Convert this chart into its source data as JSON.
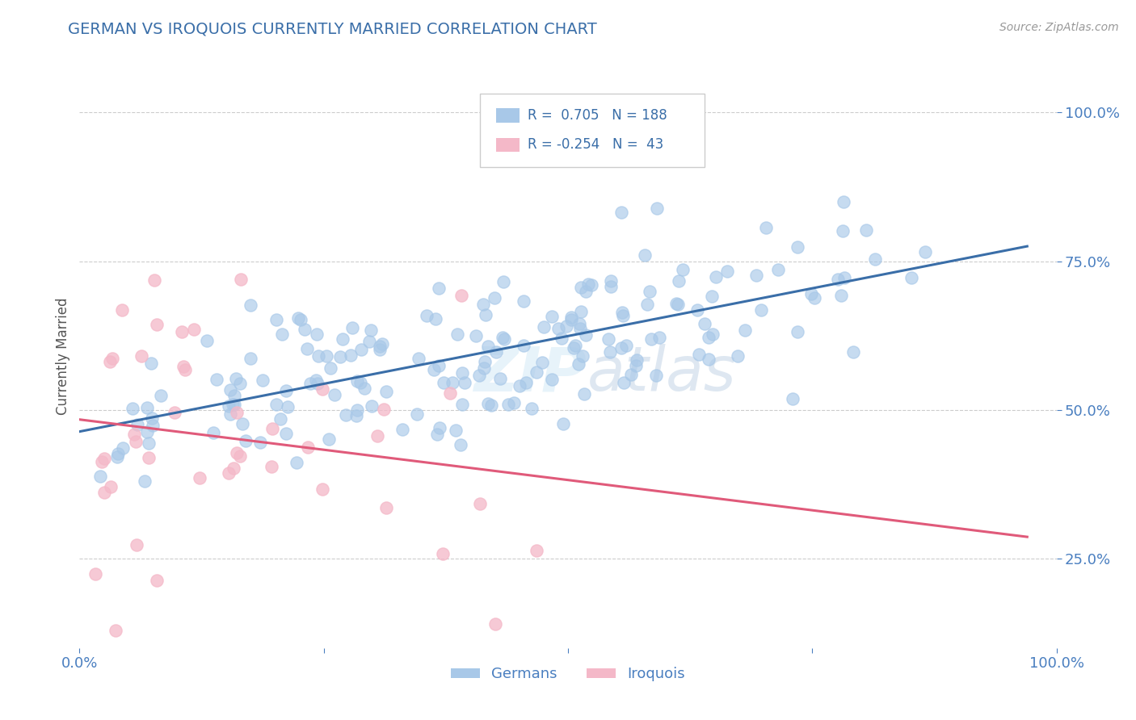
{
  "title": "GERMAN VS IROQUOIS CURRENTLY MARRIED CORRELATION CHART",
  "source_text": "Source: ZipAtlas.com",
  "ylabel": "Currently Married",
  "watermark": "ZIPAtlas",
  "legend_blue_r": "0.705",
  "legend_blue_n": "188",
  "legend_pink_r": "-0.254",
  "legend_pink_n": "43",
  "blue_color": "#a8c8e8",
  "pink_color": "#f4b8c8",
  "blue_line_color": "#3a6ea8",
  "pink_line_color": "#e05a7a",
  "title_color": "#3a6ea8",
  "axis_color": "#4a7fc0",
  "legend_text_color": "#3a6ea8",
  "background_color": "#ffffff",
  "grid_color": "#cccccc",
  "xlim": [
    0.0,
    1.0
  ],
  "ylim": [
    0.1,
    1.08
  ],
  "xticks": [
    0.0,
    0.25,
    0.5,
    0.75,
    1.0
  ],
  "yticks": [
    0.25,
    0.5,
    0.75,
    1.0
  ],
  "xtick_labels": [
    "0.0%",
    "",
    "",
    "",
    "100.0%"
  ],
  "ytick_labels": [
    "25.0%",
    "50.0%",
    "75.0%",
    "100.0%"
  ],
  "blue_seed": 42,
  "pink_seed": 99,
  "blue_n": 188,
  "pink_n": 43,
  "blue_R": 0.705,
  "pink_R": -0.254
}
